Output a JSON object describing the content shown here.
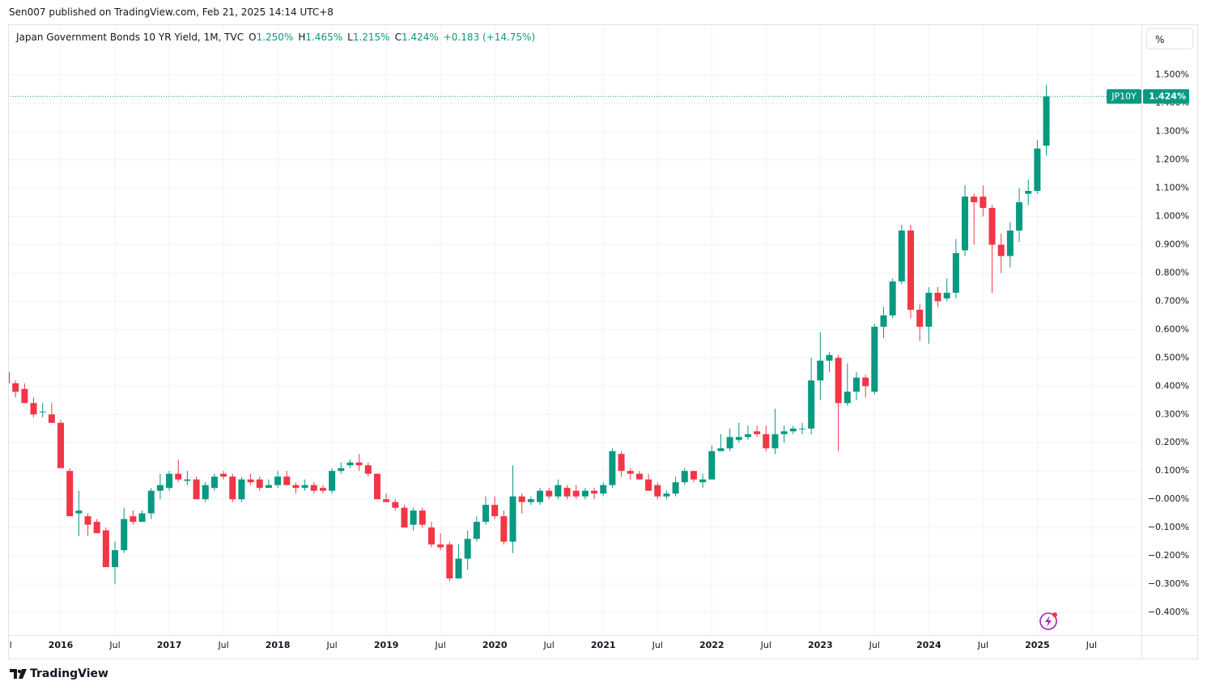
{
  "publisher_line": "Sen007 published on TradingView.com, Feb 21, 2025 14:14 UTC+8",
  "brand": "TradingView",
  "unit_button": "%",
  "chart_data": {
    "type": "candlestick",
    "title": "Japan Government Bonds 10 YR Yield, 1M, TVC",
    "legend": [
      {
        "key": "O",
        "label": "1.250%"
      },
      {
        "key": "H",
        "label": "1.465%"
      },
      {
        "key": "L",
        "label": "1.215%"
      },
      {
        "key": "C",
        "label": "1.424%"
      }
    ],
    "change": "+0.183 (+14.75%)",
    "last_price": {
      "symbol": "JP10Y",
      "value": 1.424,
      "label": "1.424%"
    },
    "up_color": "#089981",
    "down_color": "#f23645",
    "grid": true,
    "x": [
      "2015-07",
      "2015-08",
      "2015-09",
      "2015-10",
      "2015-11",
      "2015-12",
      "2016-01",
      "2016-02",
      "2016-03",
      "2016-04",
      "2016-05",
      "2016-06",
      "2016-07",
      "2016-08",
      "2016-09",
      "2016-10",
      "2016-11",
      "2016-12",
      "2017-01",
      "2017-02",
      "2017-03",
      "2017-04",
      "2017-05",
      "2017-06",
      "2017-07",
      "2017-08",
      "2017-09",
      "2017-10",
      "2017-11",
      "2017-12",
      "2018-01",
      "2018-02",
      "2018-03",
      "2018-04",
      "2018-05",
      "2018-06",
      "2018-07",
      "2018-08",
      "2018-09",
      "2018-10",
      "2018-11",
      "2018-12",
      "2019-01",
      "2019-02",
      "2019-03",
      "2019-04",
      "2019-05",
      "2019-06",
      "2019-07",
      "2019-08",
      "2019-09",
      "2019-10",
      "2019-11",
      "2019-12",
      "2020-01",
      "2020-02",
      "2020-03",
      "2020-04",
      "2020-05",
      "2020-06",
      "2020-07",
      "2020-08",
      "2020-09",
      "2020-10",
      "2020-11",
      "2020-12",
      "2021-01",
      "2021-02",
      "2021-03",
      "2021-04",
      "2021-05",
      "2021-06",
      "2021-07",
      "2021-08",
      "2021-09",
      "2021-10",
      "2021-11",
      "2021-12",
      "2022-01",
      "2022-02",
      "2022-03",
      "2022-04",
      "2022-05",
      "2022-06",
      "2022-07",
      "2022-08",
      "2022-09",
      "2022-10",
      "2022-11",
      "2022-12",
      "2023-01",
      "2023-02",
      "2023-03",
      "2023-04",
      "2023-05",
      "2023-06",
      "2023-07",
      "2023-08",
      "2023-09",
      "2023-10",
      "2023-11",
      "2023-12",
      "2024-01",
      "2024-02",
      "2024-03",
      "2024-04",
      "2024-05",
      "2024-06",
      "2024-07",
      "2024-08",
      "2024-09",
      "2024-10",
      "2024-11",
      "2024-12",
      "2025-01",
      "2025-02"
    ],
    "open": [
      0.45,
      0.41,
      0.39,
      0.34,
      0.31,
      0.3,
      0.27,
      0.1,
      -0.05,
      -0.06,
      -0.08,
      -0.11,
      -0.24,
      -0.18,
      -0.06,
      -0.08,
      -0.05,
      0.03,
      0.04,
      0.09,
      0.065,
      0.07,
      0.0,
      0.04,
      0.09,
      0.08,
      0.0,
      0.07,
      0.07,
      0.04,
      0.05,
      0.08,
      0.05,
      0.04,
      0.05,
      0.04,
      0.03,
      0.1,
      0.12,
      0.13,
      0.12,
      0.09,
      0.0,
      -0.01,
      -0.03,
      -0.09,
      -0.04,
      -0.1,
      -0.16,
      -0.16,
      -0.28,
      -0.21,
      -0.14,
      -0.08,
      -0.02,
      -0.06,
      -0.15,
      0.01,
      -0.01,
      -0.01,
      0.03,
      0.01,
      0.04,
      0.03,
      0.01,
      0.03,
      0.02,
      0.05,
      0.16,
      0.1,
      0.09,
      0.07,
      0.05,
      0.01,
      0.02,
      0.06,
      0.1,
      0.06,
      0.07,
      0.17,
      0.18,
      0.21,
      0.22,
      0.24,
      0.23,
      0.18,
      0.23,
      0.24,
      0.25,
      0.25,
      0.42,
      0.49,
      0.5,
      0.34,
      0.38,
      0.43,
      0.38,
      0.61,
      0.65,
      0.77,
      0.95,
      0.67,
      0.61,
      0.73,
      0.71,
      0.73,
      0.88,
      1.07,
      1.07,
      1.03,
      0.9,
      0.86,
      0.95,
      1.08,
      1.09,
      1.25
    ],
    "high": [
      0.47,
      0.42,
      0.41,
      0.36,
      0.34,
      0.34,
      0.28,
      0.11,
      0.03,
      -0.05,
      -0.07,
      -0.1,
      -0.15,
      -0.03,
      -0.04,
      -0.04,
      0.04,
      0.09,
      0.1,
      0.14,
      0.1,
      0.08,
      0.06,
      0.09,
      0.1,
      0.09,
      0.08,
      0.09,
      0.08,
      0.07,
      0.1,
      0.1,
      0.06,
      0.07,
      0.06,
      0.05,
      0.11,
      0.13,
      0.14,
      0.16,
      0.13,
      0.09,
      0.02,
      0.0,
      -0.02,
      -0.03,
      -0.03,
      -0.08,
      -0.12,
      -0.15,
      -0.16,
      -0.11,
      -0.06,
      0.01,
      0.01,
      -0.04,
      0.12,
      0.02,
      0.01,
      0.04,
      0.04,
      0.07,
      0.05,
      0.05,
      0.04,
      0.04,
      0.06,
      0.18,
      0.17,
      0.11,
      0.1,
      0.09,
      0.06,
      0.03,
      0.08,
      0.11,
      0.1,
      0.09,
      0.19,
      0.23,
      0.25,
      0.27,
      0.26,
      0.26,
      0.26,
      0.32,
      0.26,
      0.26,
      0.27,
      0.5,
      0.59,
      0.52,
      0.51,
      0.48,
      0.45,
      0.44,
      0.62,
      0.68,
      0.78,
      0.97,
      0.97,
      0.69,
      0.75,
      0.75,
      0.78,
      0.92,
      1.11,
      1.08,
      1.11,
      1.04,
      0.94,
      0.98,
      1.1,
      1.13,
      1.27,
      1.465
    ],
    "low": [
      0.39,
      0.36,
      0.34,
      0.29,
      0.29,
      0.27,
      0.11,
      -0.06,
      -0.13,
      -0.13,
      -0.12,
      -0.24,
      -0.3,
      -0.19,
      -0.09,
      -0.08,
      -0.07,
      0.0,
      0.03,
      0.06,
      0.05,
      0.0,
      -0.01,
      0.03,
      0.07,
      -0.01,
      -0.01,
      0.05,
      0.03,
      0.04,
      0.04,
      0.05,
      0.02,
      0.03,
      0.02,
      0.02,
      0.02,
      0.09,
      0.11,
      0.1,
      0.08,
      0.0,
      -0.01,
      -0.04,
      -0.1,
      -0.11,
      -0.1,
      -0.17,
      -0.18,
      -0.29,
      -0.28,
      -0.25,
      -0.15,
      -0.09,
      -0.07,
      -0.16,
      -0.19,
      -0.05,
      -0.02,
      -0.02,
      0.0,
      0.0,
      0.0,
      0.0,
      0.0,
      0.0,
      0.01,
      0.04,
      0.08,
      0.07,
      0.07,
      0.03,
      0.0,
      0.0,
      0.01,
      0.05,
      0.06,
      0.04,
      0.07,
      0.17,
      0.17,
      0.2,
      0.21,
      0.22,
      0.17,
      0.16,
      0.2,
      0.23,
      0.23,
      0.23,
      0.35,
      0.45,
      0.17,
      0.33,
      0.35,
      0.36,
      0.37,
      0.57,
      0.64,
      0.76,
      0.64,
      0.56,
      0.55,
      0.68,
      0.7,
      0.71,
      0.86,
      0.9,
      1.0,
      0.73,
      0.8,
      0.82,
      0.91,
      1.04,
      1.08,
      1.215
    ],
    "close": [
      0.41,
      0.38,
      0.34,
      0.3,
      0.31,
      0.27,
      0.11,
      -0.06,
      -0.04,
      -0.09,
      -0.12,
      -0.24,
      -0.18,
      -0.07,
      -0.08,
      -0.05,
      0.03,
      0.05,
      0.09,
      0.07,
      0.07,
      0.0,
      0.05,
      0.08,
      0.08,
      0.0,
      0.07,
      0.06,
      0.04,
      0.05,
      0.08,
      0.05,
      0.04,
      0.05,
      0.03,
      0.03,
      0.1,
      0.11,
      0.13,
      0.12,
      0.09,
      0.0,
      -0.01,
      -0.03,
      -0.1,
      -0.04,
      -0.09,
      -0.16,
      -0.17,
      -0.28,
      -0.21,
      -0.14,
      -0.08,
      -0.02,
      -0.06,
      -0.15,
      0.01,
      -0.01,
      0.0,
      0.03,
      0.01,
      0.05,
      0.01,
      0.01,
      0.03,
      0.02,
      0.05,
      0.17,
      0.1,
      0.09,
      0.07,
      0.03,
      0.01,
      0.02,
      0.06,
      0.1,
      0.07,
      0.07,
      0.17,
      0.18,
      0.22,
      0.22,
      0.23,
      0.23,
      0.18,
      0.23,
      0.24,
      0.25,
      0.25,
      0.42,
      0.49,
      0.51,
      0.34,
      0.38,
      0.43,
      0.4,
      0.61,
      0.65,
      0.77,
      0.95,
      0.67,
      0.61,
      0.73,
      0.7,
      0.73,
      0.87,
      1.07,
      1.05,
      1.03,
      0.9,
      0.86,
      0.95,
      1.05,
      1.09,
      1.24,
      1.424
    ],
    "ylim": [
      -0.48,
      1.665
    ],
    "yticks": [
      {
        "value": 1.5,
        "label": "1.500%"
      },
      {
        "value": 1.4,
        "label": "1.400%"
      },
      {
        "value": 1.3,
        "label": "1.300%"
      },
      {
        "value": 1.2,
        "label": "1.200%"
      },
      {
        "value": 1.1,
        "label": "1.100%"
      },
      {
        "value": 1.0,
        "label": "1.000%"
      },
      {
        "value": 0.9,
        "label": "0.900%"
      },
      {
        "value": 0.8,
        "label": "0.800%"
      },
      {
        "value": 0.7,
        "label": "0.700%"
      },
      {
        "value": 0.6,
        "label": "0.600%"
      },
      {
        "value": 0.5,
        "label": "0.500%"
      },
      {
        "value": 0.4,
        "label": "0.400%"
      },
      {
        "value": 0.3,
        "label": "0.300%"
      },
      {
        "value": 0.2,
        "label": "0.200%"
      },
      {
        "value": 0.1,
        "label": "0.100%"
      },
      {
        "value": 0,
        "label": "−0.000%"
      },
      {
        "value": -0.1,
        "label": "−0.100%"
      },
      {
        "value": -0.2,
        "label": "−0.200%"
      },
      {
        "value": -0.3,
        "label": "−0.300%"
      },
      {
        "value": -0.4,
        "label": "−0.400%"
      }
    ],
    "xticks": [
      {
        "value": "2015-07",
        "label": "Jul"
      },
      {
        "value": "2016-01",
        "label": "2016"
      },
      {
        "value": "2016-07",
        "label": "Jul"
      },
      {
        "value": "2017-01",
        "label": "2017"
      },
      {
        "value": "2017-07",
        "label": "Jul"
      },
      {
        "value": "2018-01",
        "label": "2018"
      },
      {
        "value": "2018-07",
        "label": "Jul"
      },
      {
        "value": "2019-01",
        "label": "2019"
      },
      {
        "value": "2019-07",
        "label": "Jul"
      },
      {
        "value": "2020-01",
        "label": "2020"
      },
      {
        "value": "2020-07",
        "label": "Jul"
      },
      {
        "value": "2021-01",
        "label": "2021"
      },
      {
        "value": "2021-07",
        "label": "Jul"
      },
      {
        "value": "2022-01",
        "label": "2022"
      },
      {
        "value": "2022-07",
        "label": "Jul"
      },
      {
        "value": "2023-01",
        "label": "2023"
      },
      {
        "value": "2023-07",
        "label": "Jul"
      },
      {
        "value": "2024-01",
        "label": "2024"
      },
      {
        "value": "2024-07",
        "label": "Jul"
      },
      {
        "value": "2025-01",
        "label": "2025"
      },
      {
        "value": "2025-07",
        "label": "Jul"
      }
    ]
  }
}
